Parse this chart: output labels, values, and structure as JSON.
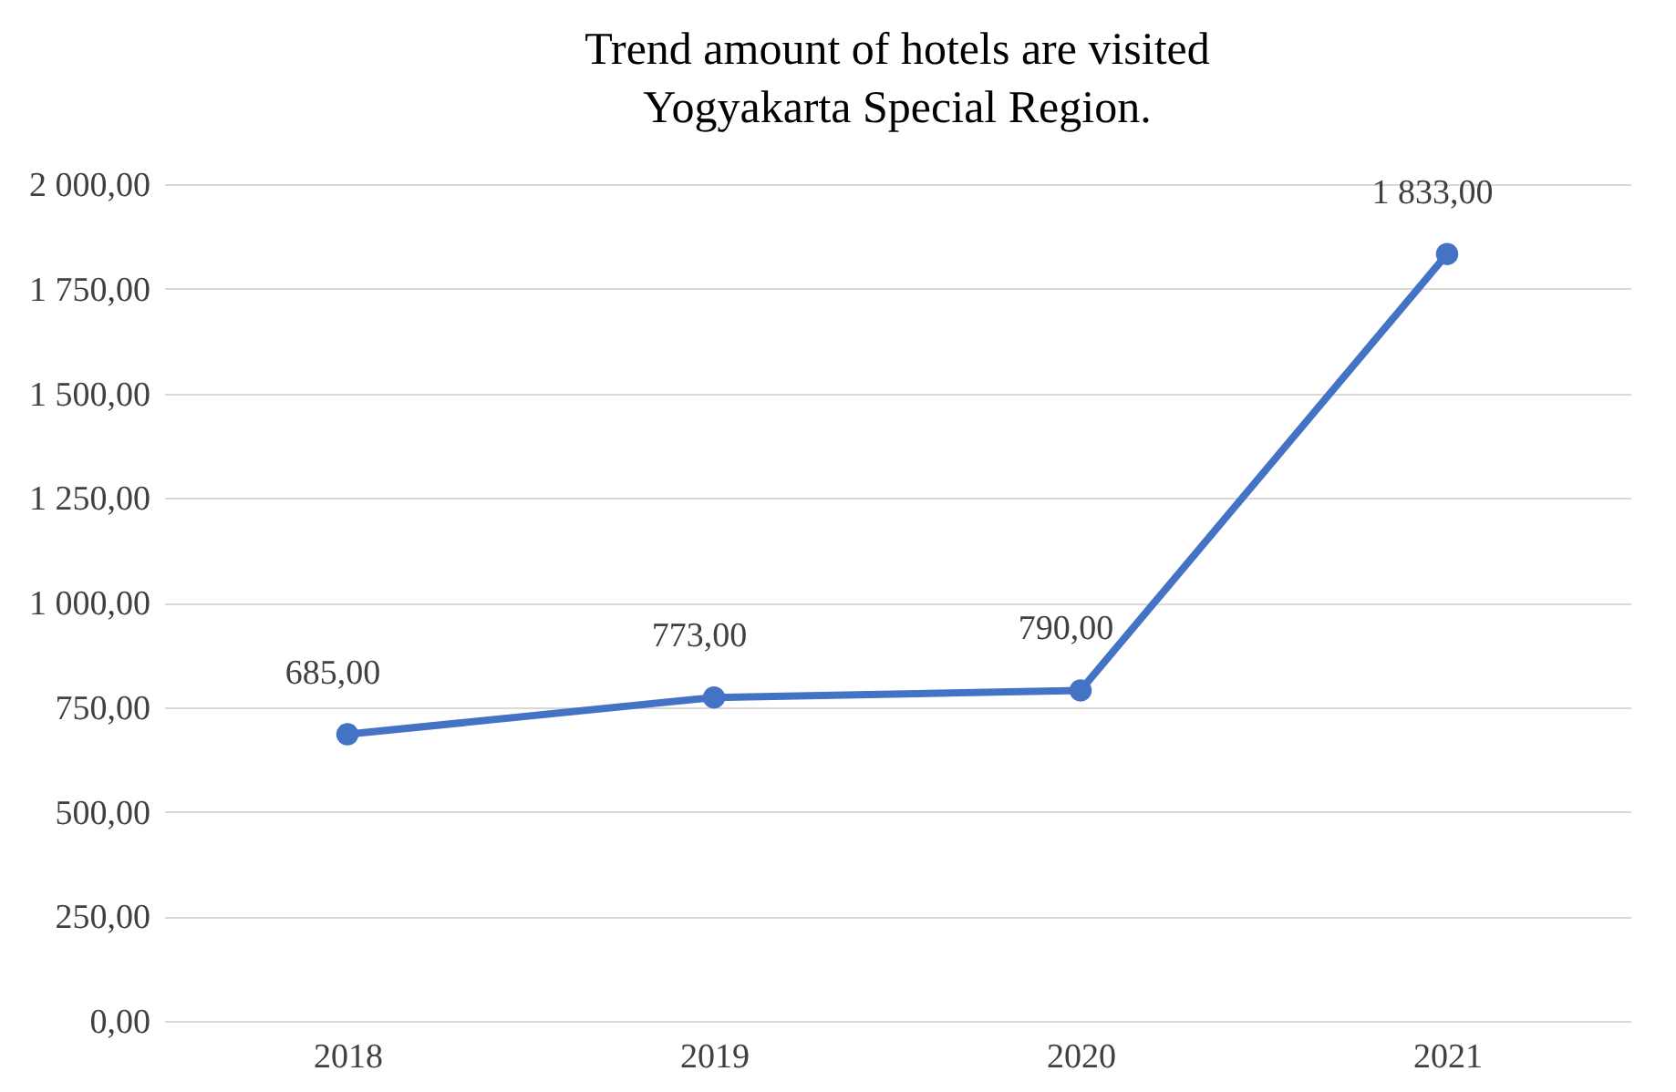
{
  "chart_data": {
    "type": "line",
    "title": "Trend amount of hotels are visited\nYogyakarta Special Region.",
    "categories": [
      "2018",
      "2019",
      "2020",
      "2021"
    ],
    "series": [
      {
        "color": "#4472c4",
        "values": [
          685,
          773,
          790,
          1833
        ],
        "value_labels": [
          "685,00",
          "773,00",
          "790,00",
          "1 833,00"
        ]
      }
    ],
    "ylim": [
      0,
      2000
    ],
    "yticks": [
      {
        "value": 0,
        "label": "0,00"
      },
      {
        "value": 250,
        "label": "250,00"
      },
      {
        "value": 500,
        "label": "500,00"
      },
      {
        "value": 750,
        "label": "750,00"
      },
      {
        "value": 1000,
        "label": "1 000,00"
      },
      {
        "value": 1250,
        "label": "1 250,00"
      },
      {
        "value": 1500,
        "label": "1 500,00"
      },
      {
        "value": 1750,
        "label": "1 750,00"
      },
      {
        "value": 2000,
        "label": "2 000,00"
      }
    ],
    "grid": "y",
    "marker": "circle",
    "line_style": "solid",
    "legend": false
  }
}
